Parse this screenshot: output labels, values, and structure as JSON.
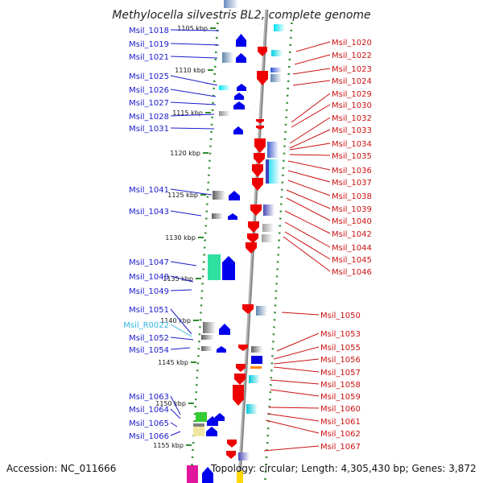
{
  "title": "Methylocella silvestris BL2, complete genome",
  "footer": {
    "accession": "Accession: NC_011666",
    "summary": "Topology: circular; Length: 4,305,430 bp; Genes: 3,872"
  },
  "kbp_ticks": [
    "1105 kbp",
    "1110 kbp",
    "1115 kbp",
    "1120 kbp",
    "1125 kbp",
    "1130 kbp",
    "1135 kbp",
    "1140 kbp",
    "1145 kbp",
    "1150 kbp",
    "1155 kbp"
  ],
  "left_labels": [
    {
      "text": "Msil_1018",
      "type": "gene"
    },
    {
      "text": "Msil_1019",
      "type": "gene"
    },
    {
      "text": "Msil_1021",
      "type": "gene"
    },
    {
      "text": "Msil_1025",
      "type": "gene"
    },
    {
      "text": "Msil_1026",
      "type": "gene"
    },
    {
      "text": "Msil_1027",
      "type": "gene"
    },
    {
      "text": "Msil_1028",
      "type": "gene"
    },
    {
      "text": "Msil_1031",
      "type": "gene"
    },
    {
      "text": "Msil_1041",
      "type": "gene"
    },
    {
      "text": "Msil_1043",
      "type": "gene"
    },
    {
      "text": "Msil_1047",
      "type": "gene"
    },
    {
      "text": "Msil_1048",
      "type": "gene"
    },
    {
      "text": "Msil_1049",
      "type": "gene"
    },
    {
      "text": "Msil_1051",
      "type": "gene"
    },
    {
      "text": "Msil_R0022",
      "type": "rna"
    },
    {
      "text": "Msil_1052",
      "type": "gene"
    },
    {
      "text": "Msil_1054",
      "type": "gene"
    },
    {
      "text": "Msil_1063",
      "type": "gene"
    },
    {
      "text": "Msil_1064",
      "type": "gene"
    },
    {
      "text": "Msil_1065",
      "type": "gene"
    },
    {
      "text": "Msil_1066",
      "type": "gene"
    }
  ],
  "right_labels": [
    "Msil_1020",
    "Msil_1022",
    "Msil_1023",
    "Msil_1024",
    "Msil_1029",
    "Msil_1030",
    "Msil_1032",
    "Msil_1033",
    "Msil_1034",
    "Msil_1035",
    "Msil_1036",
    "Msil_1037",
    "Msil_1038",
    "Msil_1039",
    "Msil_1040",
    "Msil_1042",
    "Msil_1044",
    "Msil_1045",
    "Msil_1046",
    "Msil_1050",
    "Msil_1053",
    "Msil_1055",
    "Msil_1056",
    "Msil_1057",
    "Msil_1058",
    "Msil_1059",
    "Msil_1060",
    "Msil_1061",
    "Msil_1062",
    "Msil_1067"
  ],
  "colors": {
    "left_label": "#1a1acc",
    "right_label": "#cc1111",
    "rna_label": "#33b5e5",
    "forward_strand": "#0000ee",
    "reverse_strand": "#ee0000",
    "tick_dots": "#2e8b2e",
    "backbone": "#999999"
  }
}
